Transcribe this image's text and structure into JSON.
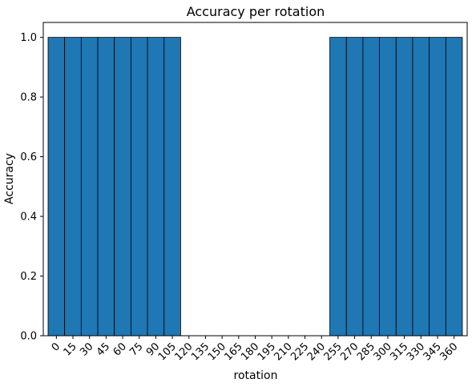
{
  "chart_data": {
    "type": "bar",
    "title": "Accuracy per rotation",
    "xlabel": "rotation",
    "ylabel": "Accuracy",
    "categories": [
      "0",
      "15",
      "30",
      "45",
      "60",
      "75",
      "90",
      "105",
      "120",
      "135",
      "150",
      "165",
      "180",
      "195",
      "210",
      "225",
      "240",
      "255",
      "270",
      "285",
      "300",
      "315",
      "330",
      "345",
      "360"
    ],
    "values": [
      1,
      1,
      1,
      1,
      1,
      1,
      1,
      1,
      0,
      0,
      0,
      0,
      0,
      0,
      0,
      0,
      0,
      1,
      1,
      1,
      1,
      1,
      1,
      1,
      1
    ],
    "ylim": [
      0,
      1.05
    ],
    "yticks": [
      "0.0",
      "0.2",
      "0.4",
      "0.6",
      "0.8",
      "1.0"
    ],
    "bar_color": "#1f77b4",
    "edge_color": "#000000",
    "grid": false,
    "legend": "none"
  }
}
